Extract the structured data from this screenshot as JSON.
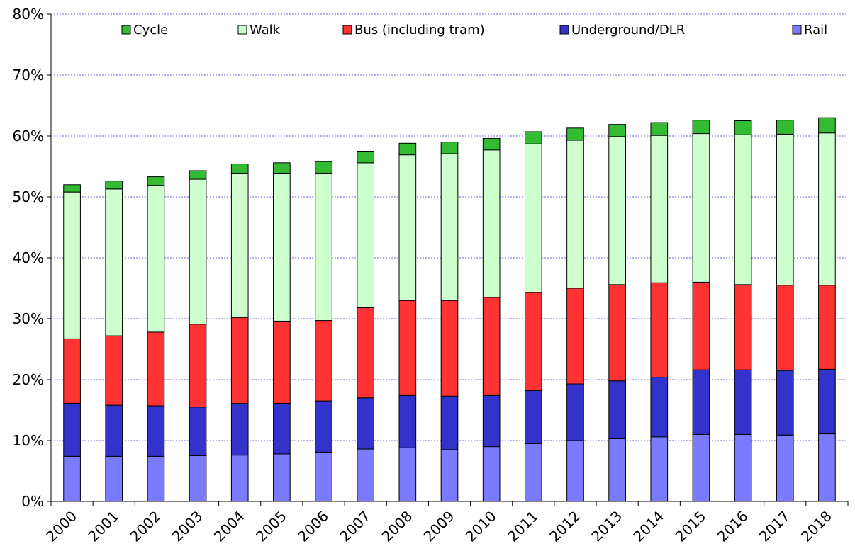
{
  "chart_data": {
    "type": "bar",
    "stacked": true,
    "title": "",
    "xlabel": "",
    "ylabel": "",
    "ylim": [
      0,
      80
    ],
    "y_tick_labels": [
      "0%",
      "10%",
      "20%",
      "30%",
      "40%",
      "50%",
      "60%",
      "70%",
      "80%"
    ],
    "grid": true,
    "legend_position": "top",
    "categories": [
      "2000",
      "2001",
      "2002",
      "2003",
      "2004",
      "2005",
      "2006",
      "2007",
      "2008",
      "2009",
      "2010",
      "2011",
      "2012",
      "2013",
      "2014",
      "2015",
      "2016",
      "2017",
      "2018"
    ],
    "series": [
      {
        "name": "Rail",
        "color": "#7b7bff",
        "values": [
          7.4,
          7.4,
          7.4,
          7.5,
          7.6,
          7.8,
          8.1,
          8.6,
          8.8,
          8.5,
          9.0,
          9.5,
          10.0,
          10.3,
          10.6,
          11.0,
          11.0,
          10.9,
          11.1
        ]
      },
      {
        "name": "Underground/DLR",
        "color": "#3333cc",
        "values": [
          8.7,
          8.4,
          8.3,
          8.0,
          8.5,
          8.3,
          8.4,
          8.4,
          8.6,
          8.8,
          8.4,
          8.7,
          9.3,
          9.5,
          9.8,
          10.6,
          10.6,
          10.6,
          10.6
        ]
      },
      {
        "name": "Bus (including tram)",
        "color": "#ff3333",
        "values": [
          10.6,
          11.4,
          12.1,
          13.6,
          14.1,
          13.5,
          13.2,
          14.8,
          15.6,
          15.7,
          16.1,
          16.1,
          15.7,
          15.8,
          15.5,
          14.4,
          14.0,
          14.0,
          13.8
        ]
      },
      {
        "name": "Walk",
        "color": "#ccffcc",
        "values": [
          24.1,
          24.1,
          24.1,
          23.8,
          23.7,
          24.3,
          24.2,
          23.8,
          23.9,
          24.1,
          24.2,
          24.4,
          24.3,
          24.3,
          24.2,
          24.4,
          24.6,
          24.8,
          25.0
        ]
      },
      {
        "name": "Cycle",
        "color": "#33bb33",
        "values": [
          1.2,
          1.3,
          1.4,
          1.4,
          1.5,
          1.7,
          1.9,
          1.9,
          1.9,
          1.9,
          1.9,
          2.0,
          2.0,
          2.0,
          2.1,
          2.2,
          2.3,
          2.3,
          2.5
        ]
      }
    ],
    "legend_order": [
      "Cycle",
      "Walk",
      "Bus (including tram)",
      "Underground/DLR",
      "Rail"
    ]
  }
}
